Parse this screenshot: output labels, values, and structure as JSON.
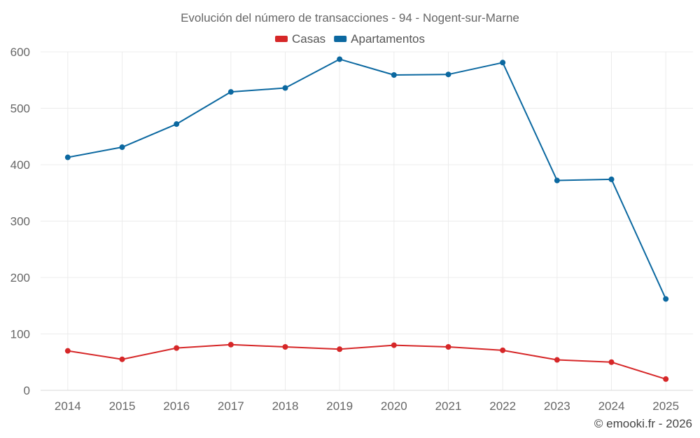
{
  "chart_data": {
    "type": "line",
    "title": "Evolución del número de transacciones - 94 - Nogent-sur-Marne",
    "xlabel": "",
    "ylabel": "",
    "categories": [
      "2014",
      "2015",
      "2016",
      "2017",
      "2018",
      "2019",
      "2020",
      "2021",
      "2022",
      "2023",
      "2024",
      "2025"
    ],
    "series": [
      {
        "name": "Casas",
        "color": "#d62728",
        "values": [
          70,
          55,
          75,
          81,
          77,
          73,
          80,
          77,
          71,
          54,
          50,
          20
        ]
      },
      {
        "name": "Apartamentos",
        "color": "#0b68a0",
        "values": [
          413,
          431,
          472,
          529,
          536,
          587,
          559,
          560,
          581,
          372,
          374,
          162
        ]
      }
    ],
    "ylim": [
      0,
      600
    ],
    "yticks": [
      0,
      100,
      200,
      300,
      400,
      500,
      600
    ],
    "grid": true,
    "legend_position": "top-center"
  },
  "credit": "© emooki.fr - 2026"
}
